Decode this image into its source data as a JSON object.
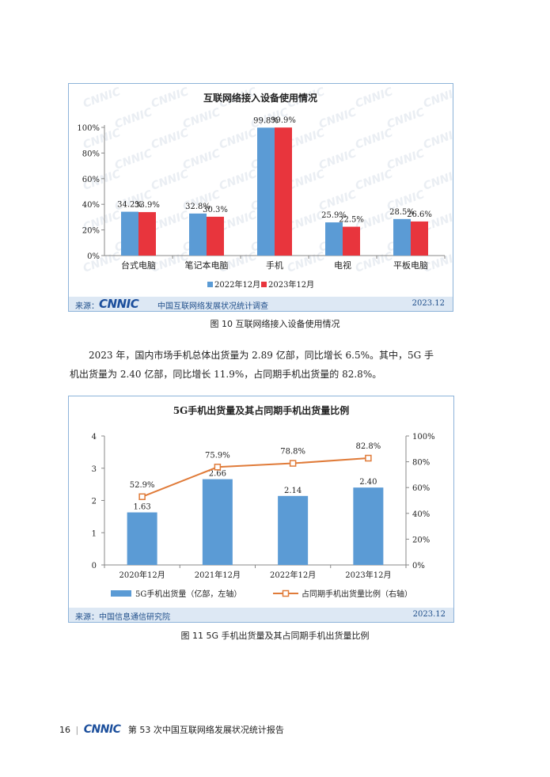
{
  "chart_data": [
    {
      "type": "bar",
      "title": "互联网络接入设备使用情况",
      "categories": [
        "台式电脑",
        "笔记本电脑",
        "手机",
        "电视",
        "平板电脑"
      ],
      "series": [
        {
          "name": "2022年12月",
          "values": [
            34.2,
            32.8,
            99.8,
            25.9,
            28.5
          ],
          "labels": [
            "34.2%",
            "32.8%",
            "99.8%",
            "25.9%",
            "28.5%"
          ],
          "color": "#5b9bd5"
        },
        {
          "name": "2023年12月",
          "values": [
            33.9,
            30.3,
            99.9,
            22.5,
            26.6
          ],
          "labels": [
            "33.9%",
            "30.3%",
            "99.9%",
            "22.5%",
            "26.6%"
          ],
          "color": "#e8353d"
        }
      ],
      "ylim": [
        0,
        100
      ],
      "yticks": [
        "0%",
        "20%",
        "40%",
        "60%",
        "80%",
        "100%"
      ],
      "legend": "bottom"
    },
    {
      "type": "bar",
      "title": "5G手机出货量及其占同期手机出货量比例",
      "categories": [
        "2020年12月",
        "2021年12月",
        "2022年12月",
        "2023年12月"
      ],
      "series": [
        {
          "name": "5G手机出货量（亿部，左轴）",
          "type": "bar",
          "axis": "left",
          "values": [
            1.63,
            2.66,
            2.14,
            2.4
          ],
          "labels": [
            "1.63",
            "2.66",
            "2.14",
            "2.40"
          ],
          "color": "#5b9bd5"
        },
        {
          "name": "占同期手机出货量比例（右轴）",
          "type": "line",
          "axis": "right",
          "values": [
            52.9,
            75.9,
            78.8,
            82.8
          ],
          "labels": [
            "52.9%",
            "75.9%",
            "78.8%",
            "82.8%"
          ],
          "color": "#e07b39"
        }
      ],
      "ylim_left": [
        0,
        4
      ],
      "yticks_left": [
        "0",
        "1",
        "2",
        "3",
        "4"
      ],
      "ylim_right": [
        0,
        100
      ],
      "yticks_right": [
        "0%",
        "20%",
        "40%",
        "60%",
        "80%",
        "100%"
      ],
      "legend": "bottom"
    }
  ],
  "chart1": {
    "source_label": "来源：",
    "logo": "CNNIC",
    "source_text": "中国互联网络发展状况统计调查",
    "date": "2023.12",
    "watermark": "CNNIC"
  },
  "chart2": {
    "source_label": "来源：",
    "source_text": "中国信息通信研究院",
    "date": "2023.12"
  },
  "captions": {
    "fig10": "图 10  互联网络接入设备使用情况",
    "fig11": "图 11  5G 手机出货量及其占同期手机出货量比例"
  },
  "paragraph": {
    "line1": "2023 年，国内市场手机总体出货量为 2.89 亿部，同比增长 6.5%。其中，5G 手",
    "line2": "机出货量为 2.40 亿部，同比增长 11.9%，占同期手机出货量的 82.8%。"
  },
  "footer": {
    "page_number": "16",
    "logo": "CNNIC",
    "title": "第 53 次中国互联网络发展状况统计报告"
  }
}
